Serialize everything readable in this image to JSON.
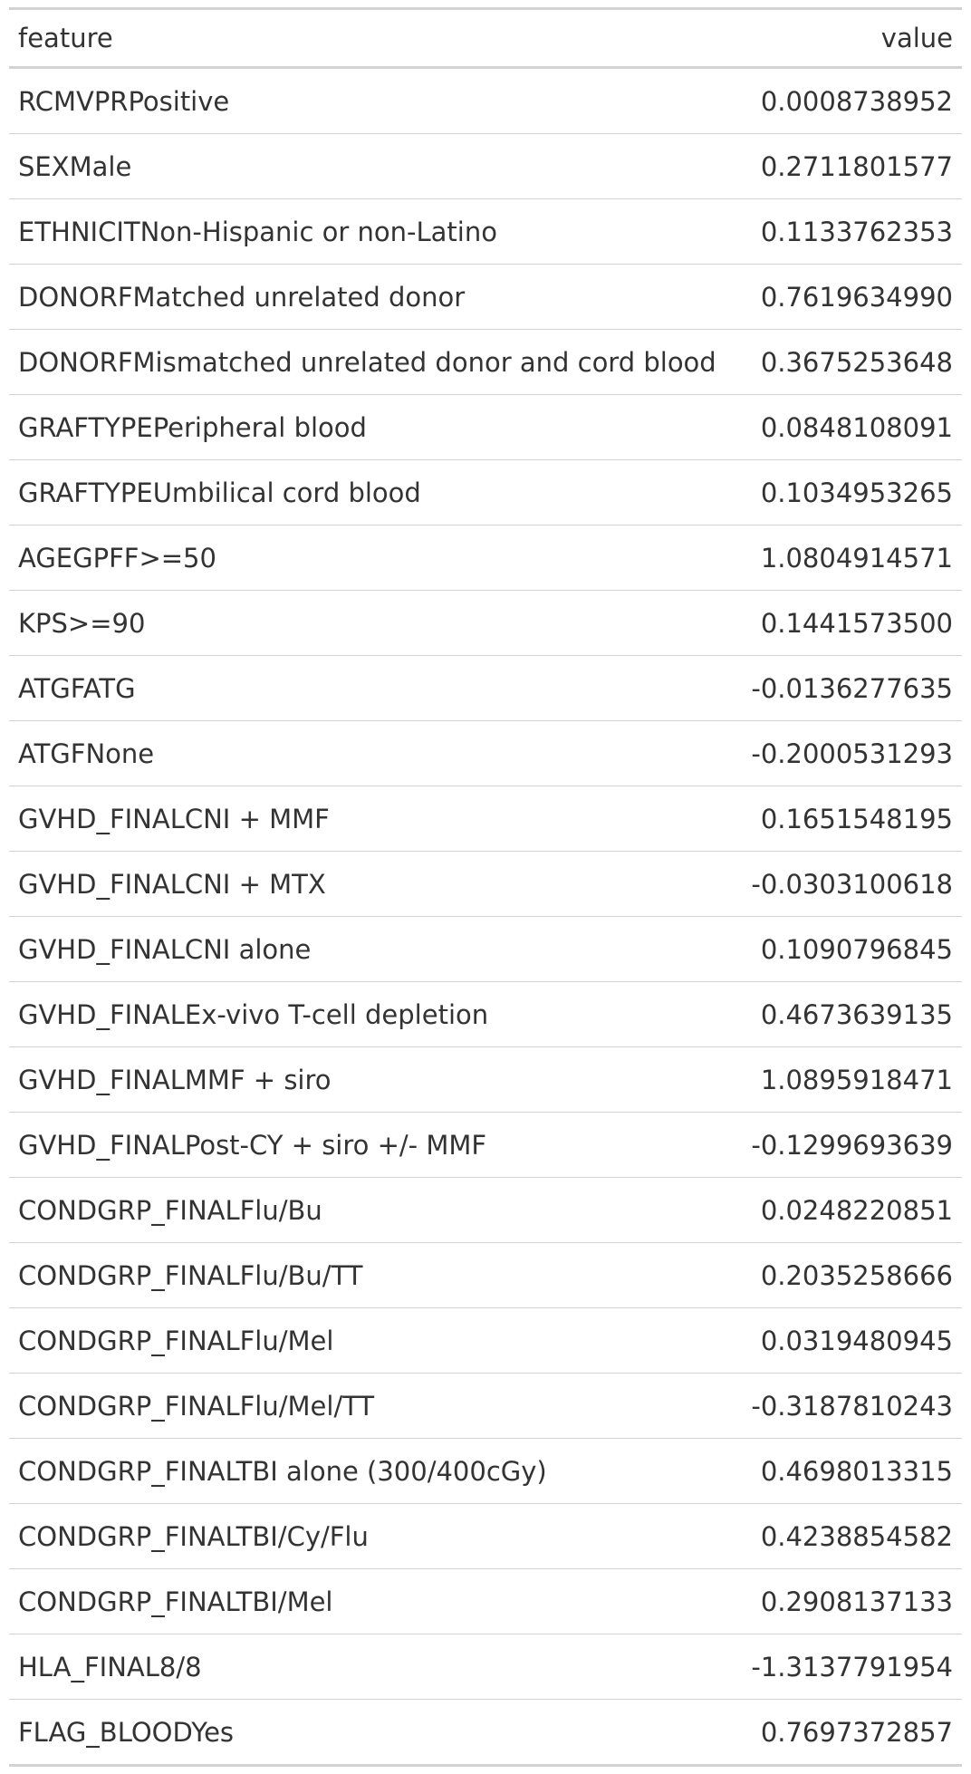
{
  "table": {
    "columns": [
      "feature",
      "value"
    ],
    "rows": [
      {
        "feature": "RCMVPRPositive",
        "value": "0.0008738952"
      },
      {
        "feature": "SEXMale",
        "value": "0.2711801577"
      },
      {
        "feature": "ETHNICITNon-Hispanic or non-Latino",
        "value": "0.1133762353"
      },
      {
        "feature": "DONORFMatched unrelated donor",
        "value": "0.7619634990"
      },
      {
        "feature": "DONORFMismatched unrelated donor and cord blood",
        "value": "0.3675253648"
      },
      {
        "feature": "GRAFTYPEPeripheral blood",
        "value": "0.0848108091"
      },
      {
        "feature": "GRAFTYPEUmbilical cord blood",
        "value": "0.1034953265"
      },
      {
        "feature": "AGEGPFF>=50",
        "value": "1.0804914571"
      },
      {
        "feature": "KPS>=90",
        "value": "0.1441573500"
      },
      {
        "feature": "ATGFATG",
        "value": "-0.0136277635"
      },
      {
        "feature": "ATGFNone",
        "value": "-0.2000531293"
      },
      {
        "feature": "GVHD_FINALCNI + MMF",
        "value": "0.1651548195"
      },
      {
        "feature": "GVHD_FINALCNI + MTX",
        "value": "-0.0303100618"
      },
      {
        "feature": "GVHD_FINALCNI alone",
        "value": "0.1090796845"
      },
      {
        "feature": "GVHD_FINALEx-vivo T-cell depletion",
        "value": "0.4673639135"
      },
      {
        "feature": "GVHD_FINALMMF + siro",
        "value": "1.0895918471"
      },
      {
        "feature": "GVHD_FINALPost-CY + siro +/- MMF",
        "value": "-0.1299693639"
      },
      {
        "feature": "CONDGRP_FINALFlu/Bu",
        "value": "0.0248220851"
      },
      {
        "feature": "CONDGRP_FINALFlu/Bu/TT",
        "value": "0.2035258666"
      },
      {
        "feature": "CONDGRP_FINALFlu/Mel",
        "value": "0.0319480945"
      },
      {
        "feature": "CONDGRP_FINALFlu/Mel/TT",
        "value": "-0.3187810243"
      },
      {
        "feature": "CONDGRP_FINALTBI alone (300/400cGy)",
        "value": "0.4698013315"
      },
      {
        "feature": "CONDGRP_FINALTBI/Cy/Flu",
        "value": "0.4238854582"
      },
      {
        "feature": "CONDGRP_FINALTBI/Mel",
        "value": "0.2908137133"
      },
      {
        "feature": "HLA_FINAL8/8",
        "value": "-1.3137791954"
      },
      {
        "feature": "FLAG_BLOODYes",
        "value": "0.7697372857"
      }
    ]
  }
}
